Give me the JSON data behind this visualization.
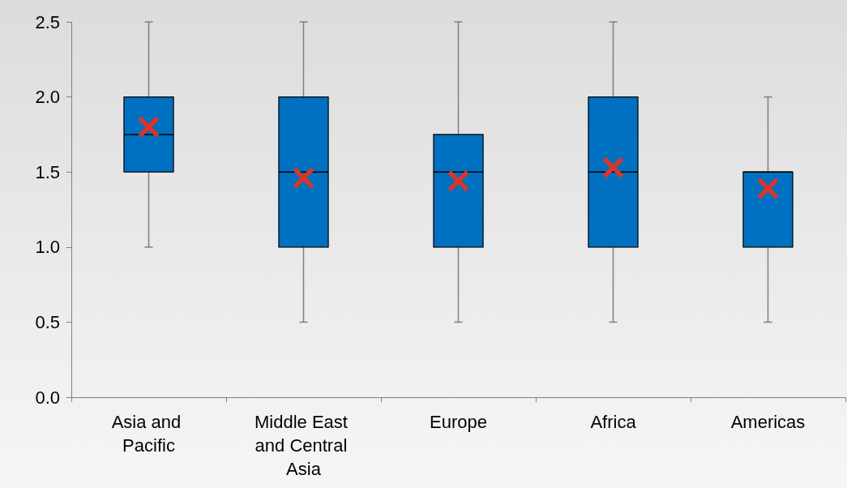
{
  "chart_data": {
    "type": "box",
    "categories": [
      "Asia and Pacific",
      "Middle East and Central Asia",
      "Europe",
      "Africa",
      "Americas"
    ],
    "series": [
      {
        "color": "#0070c0",
        "boxes": [
          {
            "low": 1.0,
            "q1": 1.5,
            "median": 1.75,
            "q3": 2.0,
            "high": 2.5
          },
          {
            "low": 0.5,
            "q1": 1.0,
            "median": 1.5,
            "q3": 2.0,
            "high": 2.5
          },
          {
            "low": 0.5,
            "q1": 1.0,
            "median": 1.5,
            "q3": 1.75,
            "high": 2.5
          },
          {
            "low": 0.5,
            "q1": 1.0,
            "median": 1.5,
            "q3": 2.0,
            "high": 2.5
          },
          {
            "low": 0.5,
            "q1": 1.0,
            "median": 1.5,
            "q3": 1.5,
            "high": 2.0
          }
        ]
      },
      {
        "type": "scatter",
        "color": "#d9352b",
        "marker": "cross",
        "x": [
          "Asia and Pacific",
          "Middle East and Central Asia",
          "Europe",
          "Africa",
          "Americas"
        ],
        "values": [
          1.8,
          1.46,
          1.44,
          1.53,
          1.39
        ]
      }
    ],
    "ylim": [
      0,
      2.5
    ],
    "yticks": [
      {
        "value": 0,
        "label": "0.0"
      },
      {
        "value": 0.5,
        "label": "0.5"
      },
      {
        "value": 1,
        "label": "1.0"
      },
      {
        "value": 1.5,
        "label": "1.5"
      },
      {
        "value": 2,
        "label": "2.0"
      },
      {
        "value": 2.5,
        "label": "2.5"
      }
    ],
    "grid": false
  }
}
